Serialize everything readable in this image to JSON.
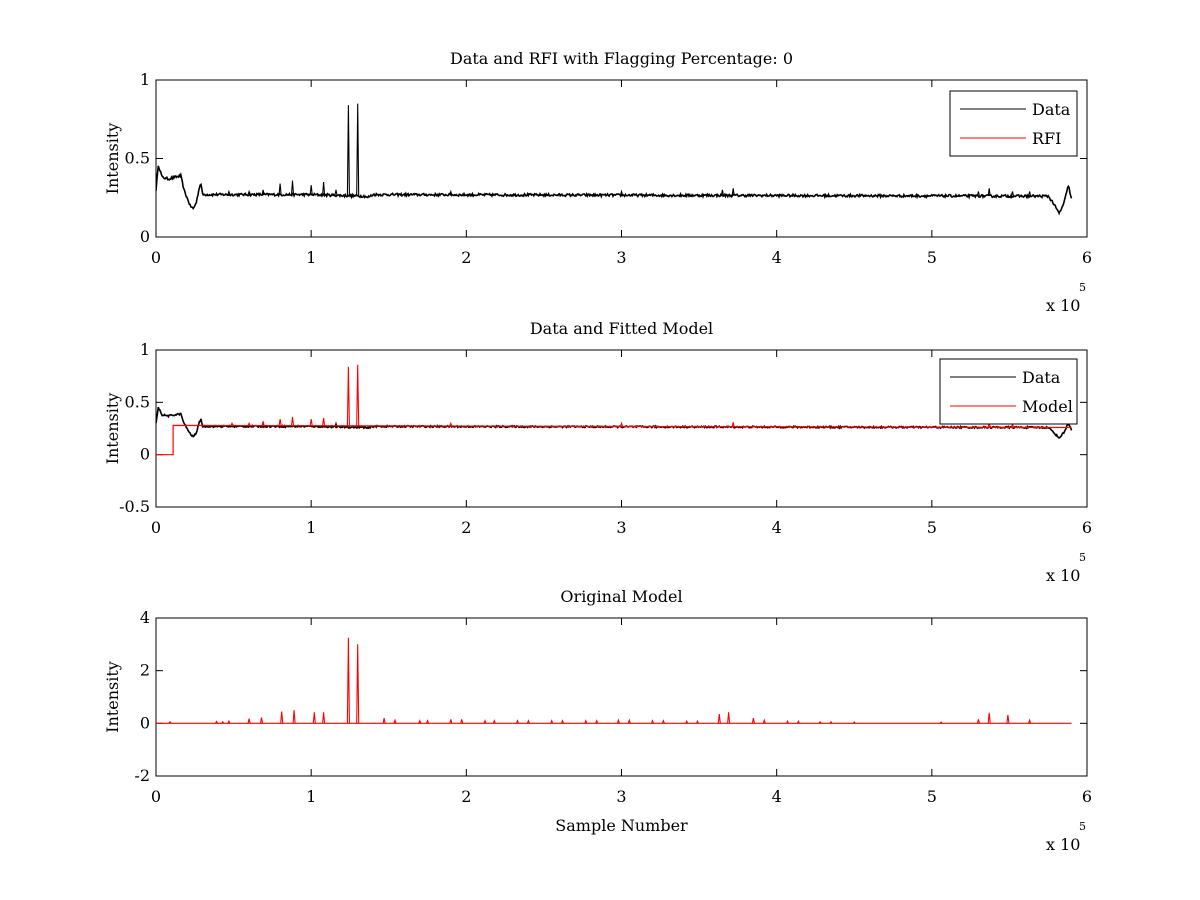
{
  "chart_data": [
    {
      "type": "line",
      "title": "Data and RFI with Flagging Percentage: 0",
      "xlabel": "",
      "ylabel": "Intensity",
      "xlim": [
        0,
        600000
      ],
      "ylim": [
        0,
        1
      ],
      "xticks": [
        0,
        1,
        2,
        3,
        4,
        5,
        6
      ],
      "yticks": [
        0,
        0.5,
        1
      ],
      "xtick_labels": [
        "0",
        "1",
        "2",
        "3",
        "4",
        "5",
        "6"
      ],
      "ytick_labels": [
        "0",
        "0.5",
        "1"
      ],
      "x_exponent": "x 10",
      "x_exponent_power": "5",
      "legend_position": "top-right",
      "series": [
        {
          "name": "Data",
          "color": "#000000",
          "baseline": 0.27,
          "noise": 0.008,
          "segments": [
            [
              0,
              0.3
            ],
            [
              1500,
              0.46
            ],
            [
              4000,
              0.38
            ],
            [
              8000,
              0.37
            ],
            [
              12000,
              0.38
            ],
            [
              16000,
              0.39
            ],
            [
              18000,
              0.3
            ],
            [
              22000,
              0.2
            ],
            [
              24000,
              0.18
            ],
            [
              26000,
              0.22
            ],
            [
              28000,
              0.32
            ],
            [
              29000,
              0.34
            ],
            [
              30000,
              0.27
            ],
            [
              100000,
              0.27
            ],
            [
              135000,
              0.26
            ],
            [
              136000,
              0.25
            ],
            [
              140000,
              0.27
            ],
            [
              575000,
              0.26
            ],
            [
              578000,
              0.22
            ],
            [
              582000,
              0.15
            ],
            [
              585000,
              0.21
            ],
            [
              588000,
              0.33
            ],
            [
              590000,
              0.24
            ]
          ],
          "spikes": [
            [
              124000,
              0.84
            ],
            [
              130000,
              0.85
            ],
            [
              80000,
              0.34
            ],
            [
              88000,
              0.36
            ],
            [
              100000,
              0.33
            ],
            [
              108000,
              0.35
            ],
            [
              69000,
              0.3
            ],
            [
              60000,
              0.29
            ],
            [
              47000,
              0.29
            ],
            [
              116000,
              0.3
            ],
            [
              190000,
              0.29
            ],
            [
              300000,
              0.29
            ],
            [
              365000,
              0.3
            ],
            [
              372000,
              0.31
            ],
            [
              530000,
              0.29
            ],
            [
              537000,
              0.31
            ],
            [
              552000,
              0.29
            ],
            [
              563000,
              0.29
            ]
          ]
        },
        {
          "name": "RFI",
          "color": "#ff0000",
          "constant": 0
        }
      ]
    },
    {
      "type": "line",
      "title": "Data and Fitted Model",
      "xlabel": "",
      "ylabel": "Intensity",
      "xlim": [
        0,
        600000
      ],
      "ylim": [
        -0.5,
        1
      ],
      "xticks": [
        0,
        1,
        2,
        3,
        4,
        5,
        6
      ],
      "yticks": [
        -0.5,
        0,
        0.5,
        1
      ],
      "xtick_labels": [
        "0",
        "1",
        "2",
        "3",
        "4",
        "5",
        "6"
      ],
      "ytick_labels": [
        "-0.5",
        "0",
        "0.5",
        "1"
      ],
      "x_exponent": "x 10",
      "x_exponent_power": "5",
      "legend_position": "top-right",
      "series": [
        {
          "name": "Data",
          "color": "#000000",
          "baseline": 0.27,
          "noise": 0.008,
          "segments": [
            [
              0,
              0.3
            ],
            [
              1500,
              0.45
            ],
            [
              4000,
              0.38
            ],
            [
              8000,
              0.37
            ],
            [
              12000,
              0.38
            ],
            [
              16000,
              0.39
            ],
            [
              18000,
              0.3
            ],
            [
              22000,
              0.2
            ],
            [
              24000,
              0.17
            ],
            [
              26000,
              0.21
            ],
            [
              28000,
              0.31
            ],
            [
              29000,
              0.34
            ],
            [
              30000,
              0.27
            ],
            [
              100000,
              0.27
            ],
            [
              135000,
              0.26
            ],
            [
              136000,
              0.25
            ],
            [
              140000,
              0.27
            ],
            [
              575000,
              0.26
            ],
            [
              578000,
              0.22
            ],
            [
              582000,
              0.16
            ],
            [
              585000,
              0.21
            ],
            [
              588000,
              0.3
            ],
            [
              590000,
              0.24
            ]
          ],
          "spikes": [
            [
              116000,
              0.3
            ]
          ]
        },
        {
          "name": "Model",
          "color": "#ff0000",
          "step": [
            [
              0,
              0
            ],
            [
              11000,
              0
            ],
            [
              11000,
              0.28
            ],
            [
              590000,
              0.26
            ]
          ],
          "spikes": [
            [
              124000,
              0.84
            ],
            [
              130000,
              0.86
            ],
            [
              80000,
              0.34
            ],
            [
              88000,
              0.36
            ],
            [
              100000,
              0.34
            ],
            [
              108000,
              0.35
            ],
            [
              69000,
              0.32
            ],
            [
              60000,
              0.3
            ],
            [
              49000,
              0.3
            ],
            [
              190000,
              0.3
            ],
            [
              300000,
              0.3
            ],
            [
              372000,
              0.31
            ],
            [
              537000,
              0.31
            ],
            [
              552000,
              0.29
            ]
          ]
        }
      ]
    },
    {
      "type": "line",
      "title": "Original Model",
      "xlabel": "Sample Number",
      "ylabel": "Intensity",
      "xlim": [
        0,
        600000
      ],
      "ylim": [
        -2,
        4
      ],
      "xticks": [
        0,
        1,
        2,
        3,
        4,
        5,
        6
      ],
      "yticks": [
        -2,
        0,
        2,
        4
      ],
      "xtick_labels": [
        "0",
        "1",
        "2",
        "3",
        "4",
        "5",
        "6"
      ],
      "ytick_labels": [
        "-2",
        "0",
        "2",
        "4"
      ],
      "x_exponent": "x 10",
      "x_exponent_power": "5",
      "series": [
        {
          "name": "",
          "color": "#ff0000",
          "baseline": 0,
          "xrange": [
            0,
            590000
          ],
          "spikes": [
            [
              124000,
              3.25
            ],
            [
              130000,
              3.0
            ],
            [
              81000,
              0.45
            ],
            [
              89000,
              0.5
            ],
            [
              102000,
              0.42
            ],
            [
              108000,
              0.42
            ],
            [
              60000,
              0.18
            ],
            [
              68000,
              0.22
            ],
            [
              39000,
              0.07
            ],
            [
              43000,
              0.06
            ],
            [
              47000,
              0.08
            ],
            [
              147000,
              0.2
            ],
            [
              154000,
              0.12
            ],
            [
              170000,
              0.1
            ],
            [
              175000,
              0.1
            ],
            [
              190000,
              0.15
            ],
            [
              197000,
              0.15
            ],
            [
              212000,
              0.1
            ],
            [
              218000,
              0.1
            ],
            [
              233000,
              0.1
            ],
            [
              240000,
              0.1
            ],
            [
              255000,
              0.1
            ],
            [
              262000,
              0.1
            ],
            [
              277000,
              0.1
            ],
            [
              284000,
              0.1
            ],
            [
              298000,
              0.12
            ],
            [
              305000,
              0.12
            ],
            [
              320000,
              0.1
            ],
            [
              327000,
              0.1
            ],
            [
              342000,
              0.08
            ],
            [
              349000,
              0.08
            ],
            [
              363000,
              0.35
            ],
            [
              369000,
              0.42
            ],
            [
              385000,
              0.2
            ],
            [
              392000,
              0.12
            ],
            [
              407000,
              0.08
            ],
            [
              414000,
              0.08
            ],
            [
              428000,
              0.06
            ],
            [
              435000,
              0.06
            ],
            [
              450000,
              0.05
            ],
            [
              506000,
              0.05
            ],
            [
              530000,
              0.15
            ],
            [
              537000,
              0.4
            ],
            [
              549000,
              0.32
            ],
            [
              563000,
              0.12
            ],
            [
              9000,
              0.06
            ]
          ]
        }
      ]
    }
  ]
}
